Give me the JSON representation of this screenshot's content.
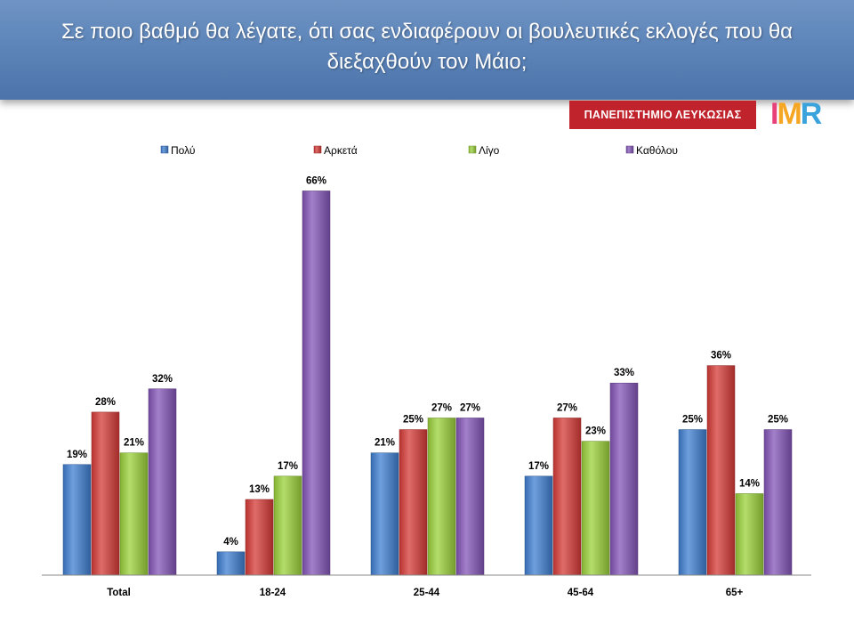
{
  "header": {
    "title": "Σε ποιο βαθμό θα λέγατε, ότι σας ενδιαφέρουν οι βουλευτικές εκλογές που θα διεξαχθούν τον Μάιο;"
  },
  "logos": {
    "university": "ΠΑΝΕΠΙΣΤΗΜΙΟ ΛΕΥΚΩΣΙΑΣ",
    "imr": "IMR"
  },
  "chart_data": {
    "type": "bar",
    "categories": [
      "Total",
      "18-24",
      "25-44",
      "45-64",
      "65+"
    ],
    "series": [
      {
        "name": "Πολύ",
        "color": "#3f7fd1",
        "values": [
          19,
          4,
          21,
          17,
          25
        ]
      },
      {
        "name": "Αρκετά",
        "color": "#d63b37",
        "values": [
          28,
          13,
          25,
          27,
          36
        ]
      },
      {
        "name": "Λίγο",
        "color": "#9bd13b",
        "values": [
          21,
          17,
          27,
          23,
          14
        ]
      },
      {
        "name": "Καθόλου",
        "color": "#8455b8",
        "values": [
          32,
          66,
          27,
          33,
          25
        ]
      }
    ],
    "value_suffix": "%",
    "ylim": [
      0,
      70
    ],
    "grid": false,
    "legend_position": "top"
  }
}
